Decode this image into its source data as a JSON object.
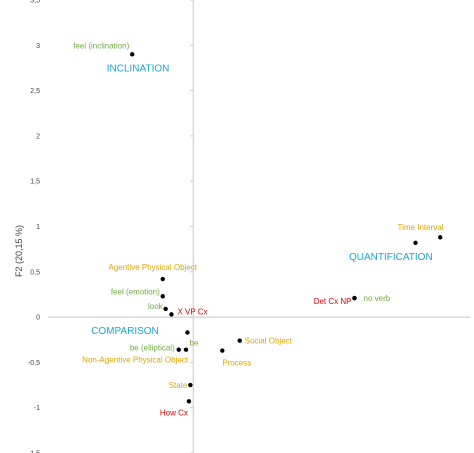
{
  "chart_data": {
    "type": "scatter",
    "ylabel": "F2 (20,15 %)",
    "ylim": [
      -1.5,
      3.5
    ],
    "xlim": [
      -1.0,
      1.85
    ],
    "y_ticks": [
      "3,5",
      "3",
      "2,5",
      "2",
      "1,5",
      "1",
      "0,5",
      "0",
      "-0,5",
      "-1",
      "-1,5"
    ],
    "grid": false,
    "colors": {
      "orange": "#e0a500",
      "green": "#70ad47",
      "red": "#e00000",
      "blue": "#1aa4d9",
      "axis": "#c8c8c8",
      "point": "#000000"
    },
    "points": [
      {
        "label": "feel (inclination)",
        "x": -0.42,
        "y": 2.9,
        "color": "green",
        "anchor": "end",
        "dx": -3,
        "dy": -9
      },
      {
        "label": "Agentive Physical Object",
        "x": -0.21,
        "y": 0.42,
        "color": "orange",
        "anchor": "middle",
        "dx": -10,
        "dy": -12
      },
      {
        "label": "feel (emotion)",
        "x": -0.21,
        "y": 0.23,
        "color": "green",
        "anchor": "end",
        "dx": -3,
        "dy": -5
      },
      {
        "label": "look",
        "x": -0.19,
        "y": 0.09,
        "color": "green",
        "anchor": "end",
        "dx": -3,
        "dy": -3
      },
      {
        "label": "X VP Cx",
        "x": -0.15,
        "y": 0.03,
        "color": "red",
        "anchor": "start",
        "dx": 6,
        "dy": -3
      },
      {
        "label": "be",
        "x": -0.04,
        "y": -0.17,
        "color": "green",
        "anchor": "start",
        "dx": 2,
        "dy": 10
      },
      {
        "label": "be (elliptical)",
        "x": -0.1,
        "y": -0.36,
        "color": "green",
        "anchor": "end",
        "dx": -4,
        "dy": -2
      },
      {
        "label": "Non-Agentive Physical Object",
        "x": -0.05,
        "y": -0.36,
        "color": "orange",
        "anchor": "end",
        "dx": 2,
        "dy": 10
      },
      {
        "label": "Social Object",
        "x": 0.32,
        "y": -0.26,
        "color": "orange",
        "anchor": "start",
        "dx": 5,
        "dy": 0
      },
      {
        "label": "Process",
        "x": 0.2,
        "y": -0.37,
        "color": "orange",
        "anchor": "start",
        "dx": 0,
        "dy": 12
      },
      {
        "label": "State",
        "x": -0.02,
        "y": -0.75,
        "color": "orange",
        "anchor": "end",
        "dx": -3,
        "dy": 0
      },
      {
        "label": "How Cx",
        "x": -0.03,
        "y": -0.93,
        "color": "red",
        "anchor": "end",
        "dx": -1,
        "dy": 11
      },
      {
        "label": "Time Interval",
        "x": 1.53,
        "y": 0.82,
        "color": "orange",
        "anchor": "start",
        "dx": -18,
        "dy": -16
      },
      {
        "label": "",
        "x": 1.7,
        "y": 0.88,
        "color": "orange",
        "anchor": "start",
        "dx": 0,
        "dy": 0
      },
      {
        "label": "Det Cx NP",
        "x": 1.11,
        "y": 0.21,
        "color": "red",
        "anchor": "end",
        "dx": -3,
        "dy": 3
      },
      {
        "label": "no verb",
        "x": 1.11,
        "y": 0.21,
        "color": "green",
        "anchor": "start",
        "dx": 9,
        "dy": 0
      }
    ],
    "clusters": [
      {
        "label": "INCLINATION",
        "x": -0.38,
        "y": 2.75
      },
      {
        "label": "QUANTIFICATION",
        "x": 1.36,
        "y": 0.67
      },
      {
        "label": "COMPARISON",
        "x": -0.47,
        "y": -0.15
      }
    ]
  }
}
